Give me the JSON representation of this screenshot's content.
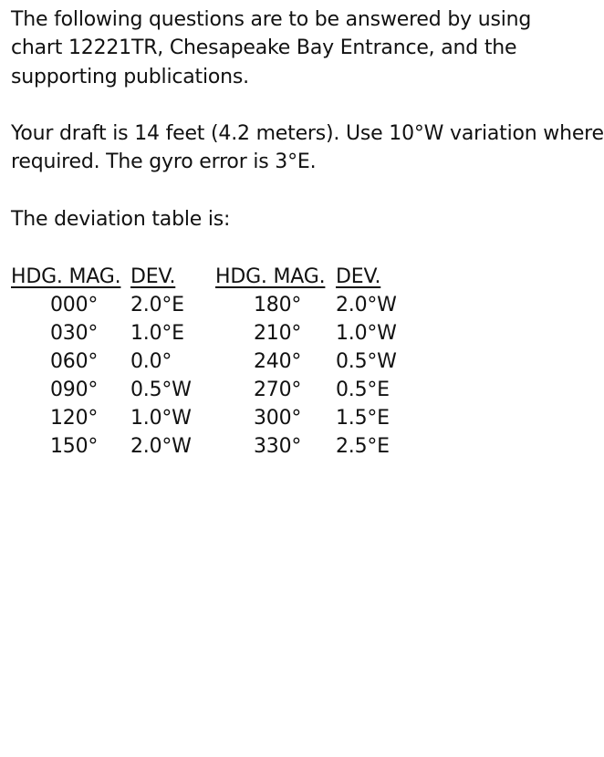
{
  "intro": {
    "lines": [
      "The following questions are to be answered by using",
      "chart 12221TR, Chesapeake Bay Entrance, and the",
      "supporting publications."
    ]
  },
  "draft": {
    "lines": [
      "Your draft is 14 feet (4.2 meters). Use 10°W variation where",
      "required. The gyro error is 3°E."
    ]
  },
  "table_intro": "The deviation table is:",
  "deviation_table": {
    "headers": [
      "HDG. MAG.",
      "DEV.",
      "HDG. MAG.",
      "DEV."
    ],
    "rows": [
      {
        "hdg1": "000°",
        "dev1": "2.0°E",
        "hdg2": "180°",
        "dev2": "2.0°W"
      },
      {
        "hdg1": "030°",
        "dev1": "1.0°E",
        "hdg2": "210°",
        "dev2": "1.0°W"
      },
      {
        "hdg1": "060°",
        "dev1": "0.0°",
        "hdg2": "240°",
        "dev2": "0.5°W"
      },
      {
        "hdg1": "090°",
        "dev1": "0.5°W",
        "hdg2": "270°",
        "dev2": "0.5°E"
      },
      {
        "hdg1": "120°",
        "dev1": "1.0°W",
        "hdg2": "300°",
        "dev2": "1.5°E"
      },
      {
        "hdg1": "150°",
        "dev1": "2.0°W",
        "hdg2": "330°",
        "dev2": "2.5°E"
      }
    ]
  }
}
